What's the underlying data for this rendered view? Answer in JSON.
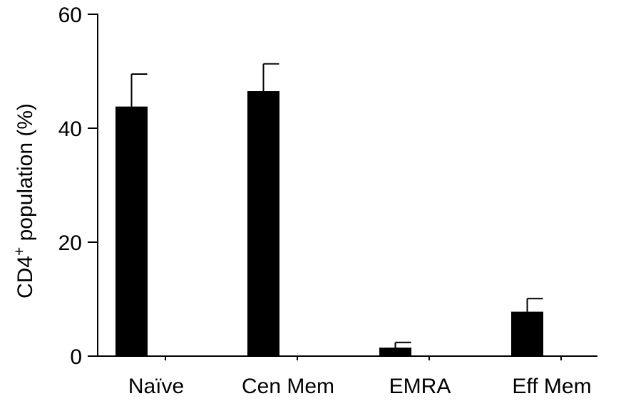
{
  "chart_data": {
    "type": "bar",
    "title": "",
    "xlabel": "",
    "ylabel": "CD4",
    "ylabel_superscript": "+",
    "ylabel_suffix": " population (%)",
    "ylim": [
      0,
      60
    ],
    "yticks": [
      0,
      20,
      40,
      60
    ],
    "ytick_labels": [
      "0",
      "20",
      "40",
      "60"
    ],
    "categories": [
      "Naïve",
      "Cen Mem",
      "EMRA",
      "Eff Mem"
    ],
    "values": [
      43.8,
      46.5,
      1.5,
      7.8
    ],
    "error_upper": [
      49.5,
      51.3,
      2.4,
      10.1
    ],
    "bar_color": "#000000",
    "grid": false,
    "legend": "none"
  }
}
